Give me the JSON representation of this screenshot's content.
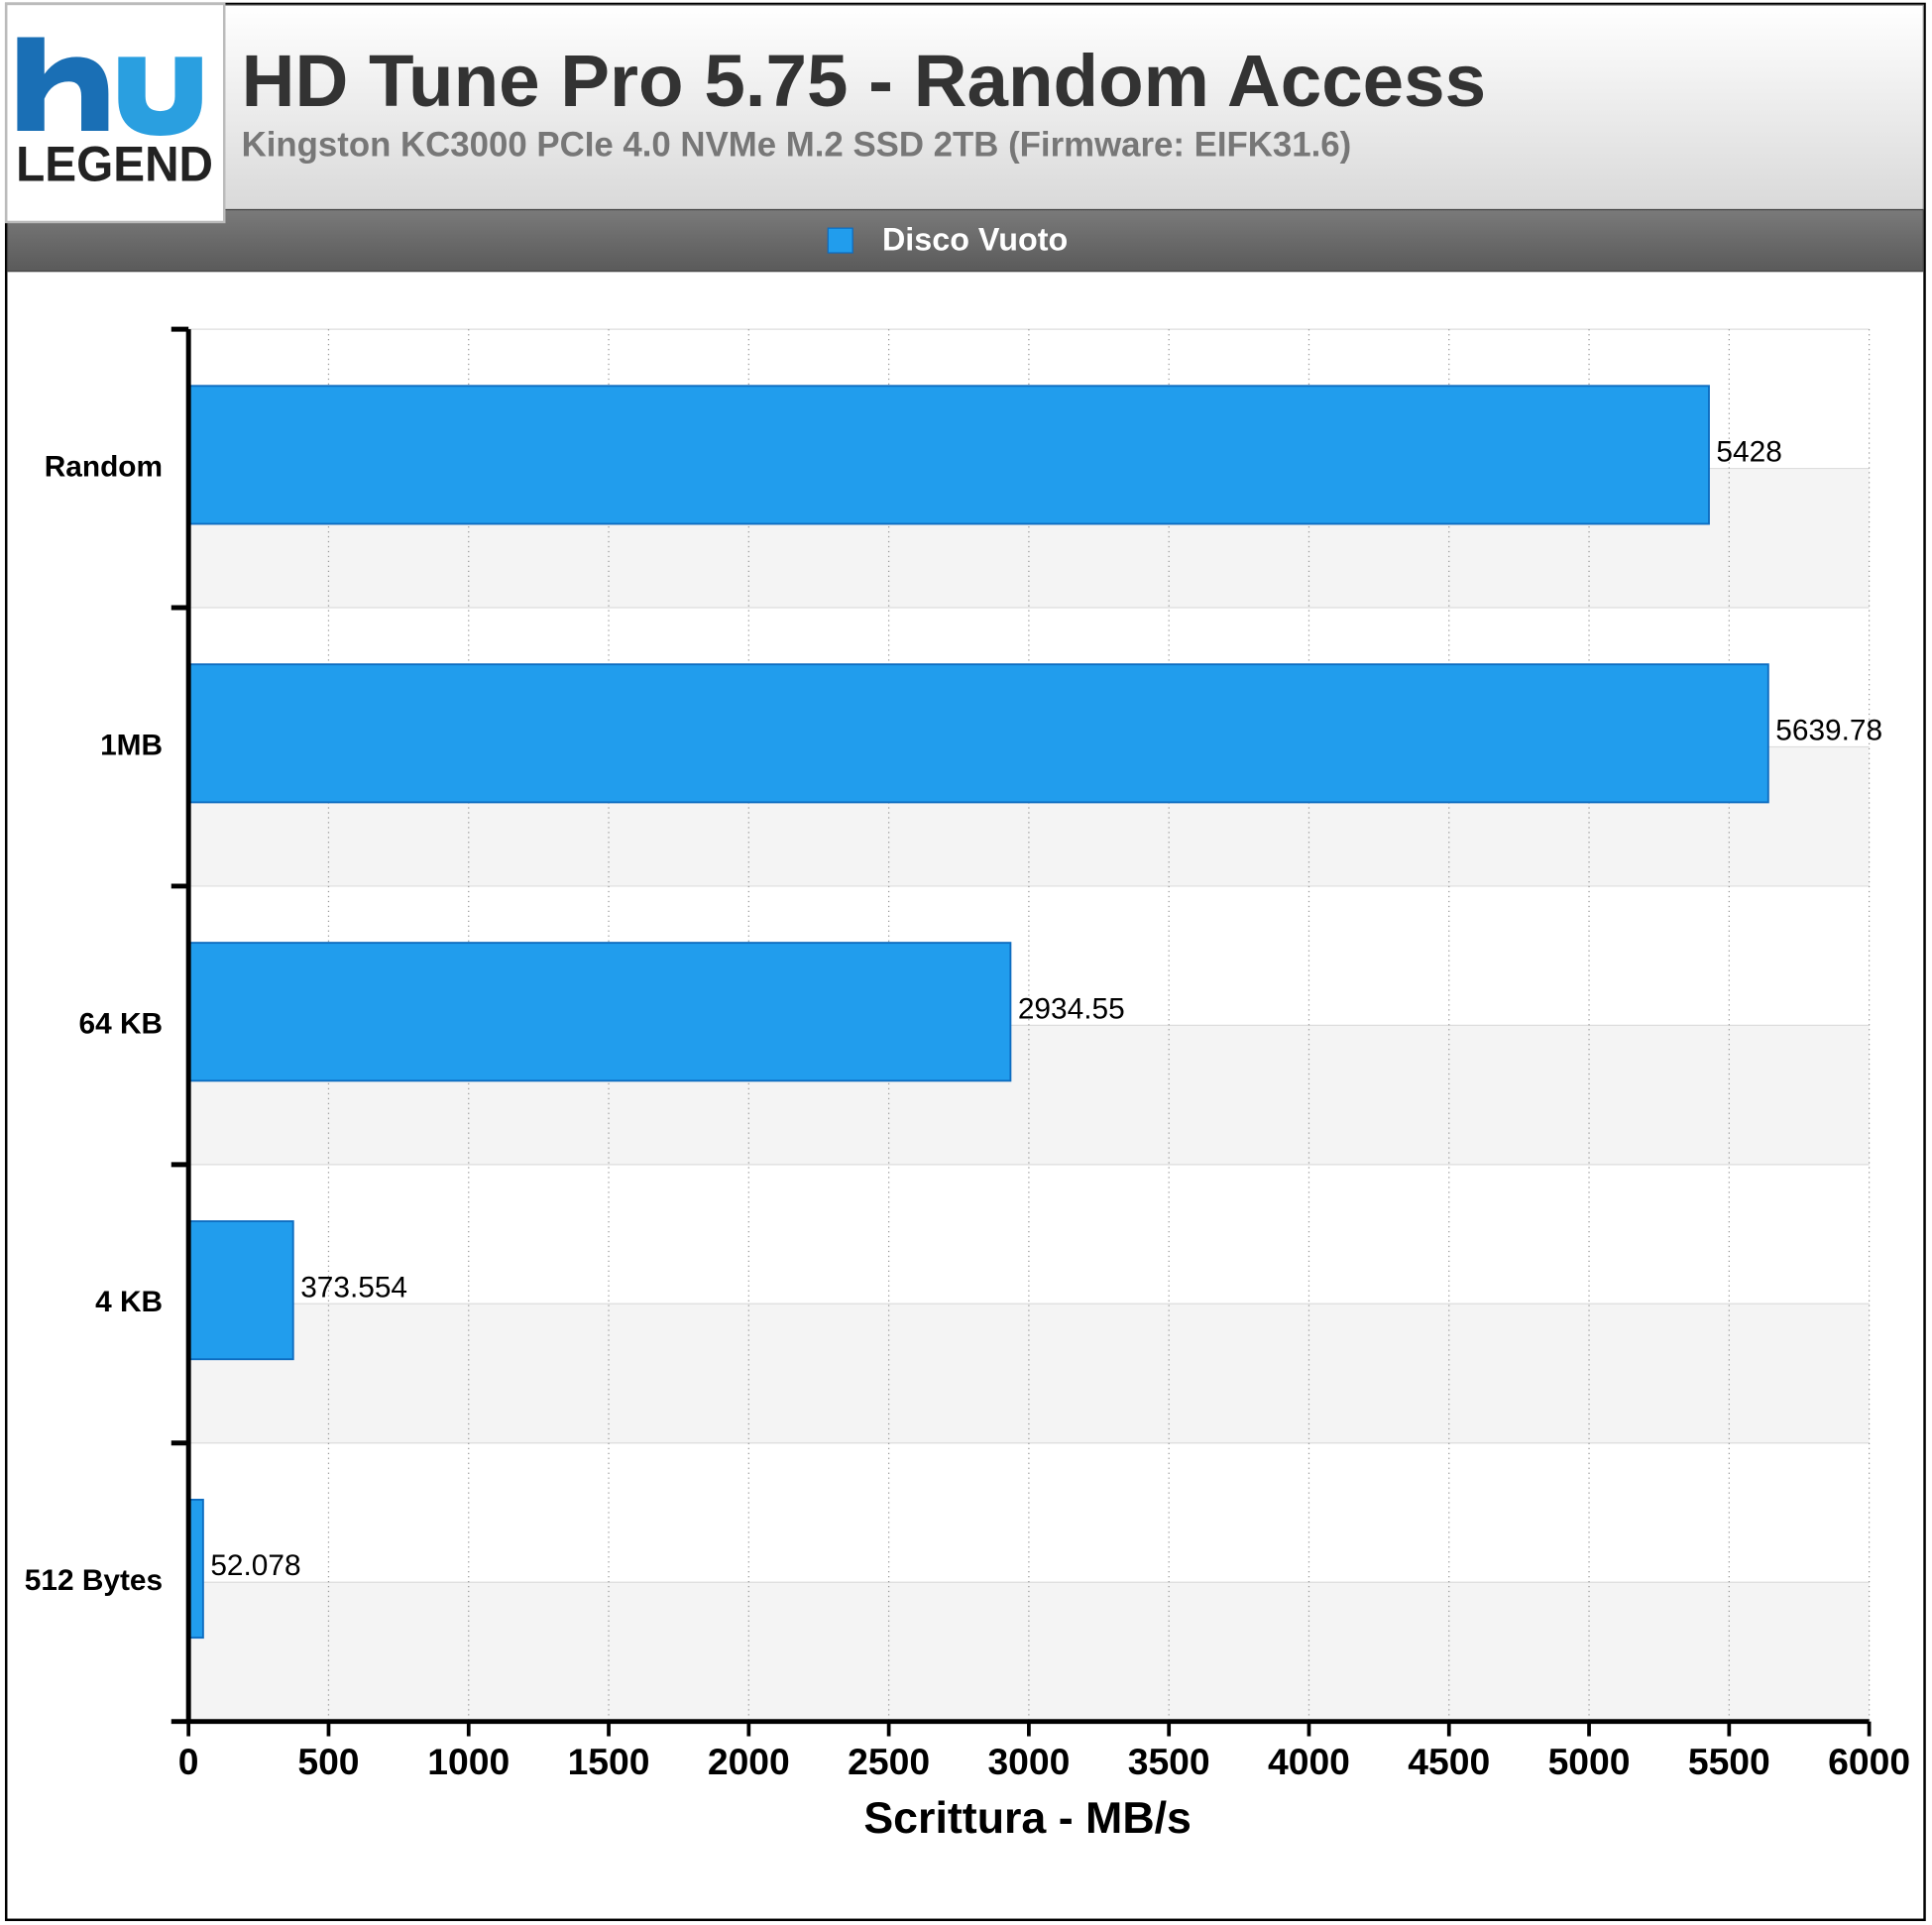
{
  "logo": "LEGEND",
  "chart_data": {
    "type": "bar",
    "orientation": "horizontal",
    "title": "HD Tune Pro 5.75 - Random Access",
    "subtitle": "Kingston KC3000 PCIe 4.0 NVMe M.2 SSD 2TB (Firmware: EIFK31.6)",
    "x_label": "Scrittura - MB/s",
    "categories": [
      "Random",
      "1MB",
      "64 KB",
      "4 KB",
      "512 Bytes"
    ],
    "series": [
      {
        "name": "Disco Vuoto",
        "color": "#219ded",
        "values": [
          5428,
          5639.78,
          2934.55,
          373.554,
          52.078
        ]
      }
    ],
    "xlim": [
      0,
      6000
    ],
    "xticks": [
      0,
      500,
      1000,
      1500,
      2000,
      2500,
      3000,
      3500,
      4000,
      4500,
      5000,
      5500,
      6000
    ],
    "grid": true
  }
}
